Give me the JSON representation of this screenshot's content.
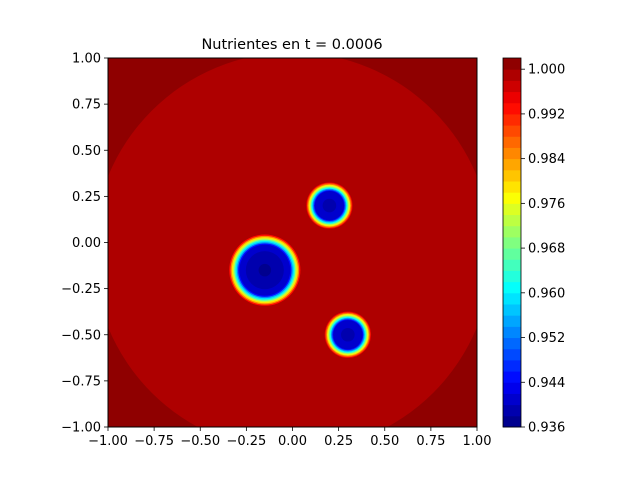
{
  "chart_data": {
    "type": "heatmap",
    "title": "Nutrientes en t = 0.0006",
    "xlabel": "",
    "ylabel": "",
    "xlim": [
      -1.0,
      1.0
    ],
    "ylim": [
      -1.0,
      1.0
    ],
    "x_ticks": [
      "−1.00",
      "−0.75",
      "−0.50",
      "−0.25",
      "0.00",
      "0.25",
      "0.50",
      "0.75",
      "1.00"
    ],
    "x_tick_values": [
      -1.0,
      -0.75,
      -0.5,
      -0.25,
      0.0,
      0.25,
      0.5,
      0.75,
      1.0
    ],
    "y_ticks": [
      "1.00",
      "0.75",
      "0.50",
      "0.25",
      "0.00",
      "−0.25",
      "−0.50",
      "−0.75",
      "−1.00"
    ],
    "y_tick_values": [
      1.0,
      0.75,
      0.5,
      0.25,
      0.0,
      -0.25,
      -0.5,
      -0.75,
      -1.0
    ],
    "colorbar": {
      "colormap": "jet",
      "min": 0.936,
      "max": 1.002,
      "levels": 33,
      "ticks": [
        "1.000",
        "0.992",
        "0.984",
        "0.976",
        "0.968",
        "0.960",
        "0.952",
        "0.944",
        "0.936"
      ],
      "tick_values": [
        1.0,
        0.992,
        0.984,
        0.976,
        0.968,
        0.96,
        0.952,
        0.944,
        0.936
      ]
    },
    "background_value": 0.999,
    "corner_value": 1.001,
    "depletion_spots": [
      {
        "x": -0.15,
        "y": -0.15,
        "core_radius": 0.14,
        "edge_radius": 0.2,
        "min_value": 0.937
      },
      {
        "x": 0.2,
        "y": 0.2,
        "core_radius": 0.08,
        "edge_radius": 0.13,
        "min_value": 0.938
      },
      {
        "x": 0.3,
        "y": -0.5,
        "core_radius": 0.08,
        "edge_radius": 0.13,
        "min_value": 0.938
      }
    ]
  }
}
